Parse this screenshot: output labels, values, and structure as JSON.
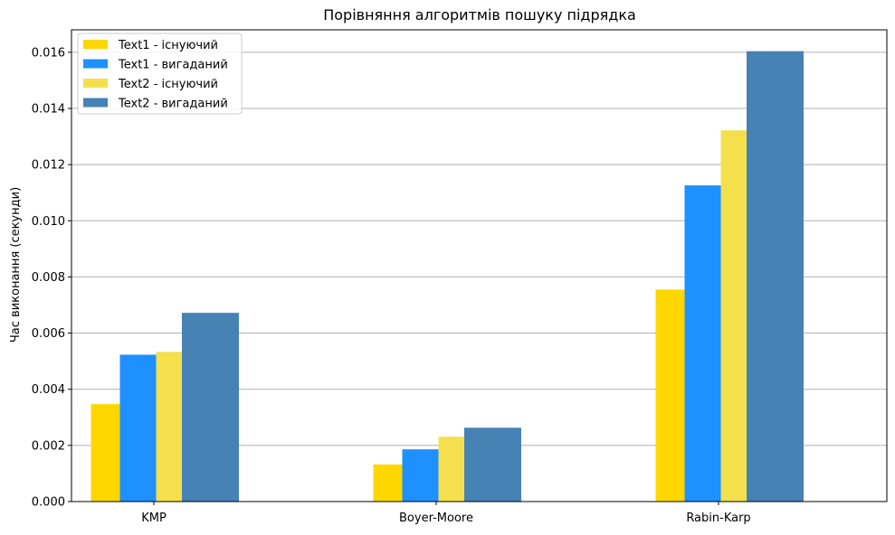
{
  "chart_data": {
    "type": "bar",
    "title": "Порівняння алгоритмів пошуку підрядка",
    "xlabel": "",
    "ylabel": "Час виконання (секунди)",
    "categories": [
      "KMP",
      "Boyer-Moore",
      "Rabin-Karp"
    ],
    "series": [
      {
        "name": "Text1 - існуючий",
        "color": "#ffd700",
        "values": [
          0.00347,
          0.00132,
          0.00755
        ]
      },
      {
        "name": "Text1 - вигаданий",
        "color": "#1e90ff",
        "values": [
          0.00523,
          0.00186,
          0.01126
        ]
      },
      {
        "name": "Text2 - існуючий",
        "color": "#f4e04d",
        "values": [
          0.00533,
          0.00231,
          0.01322
        ]
      },
      {
        "name": "Text2 - вигаданий",
        "color": "#4682b4",
        "values": [
          0.00672,
          0.00263,
          0.01604
        ]
      }
    ],
    "ylim": [
      0,
      0.0168
    ],
    "yticks": [
      "0.000",
      "0.002",
      "0.004",
      "0.006",
      "0.008",
      "0.010",
      "0.012",
      "0.014",
      "0.016"
    ],
    "grid": "y",
    "legend": "top-left"
  }
}
